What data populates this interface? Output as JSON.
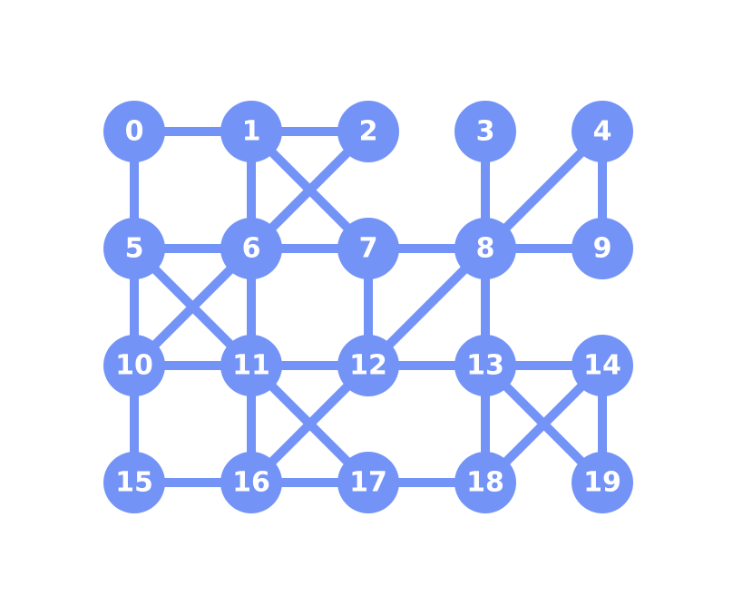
{
  "colors": {
    "node": "#7393F7",
    "edge": "#7393F7",
    "label": "#FFFFFF",
    "background": "#FFFFFF"
  },
  "grid": {
    "rows": 4,
    "cols": 5
  },
  "nodes": [
    {
      "id": 0,
      "label": "0",
      "row": 0,
      "col": 0
    },
    {
      "id": 1,
      "label": "1",
      "row": 0,
      "col": 1
    },
    {
      "id": 2,
      "label": "2",
      "row": 0,
      "col": 2
    },
    {
      "id": 3,
      "label": "3",
      "row": 0,
      "col": 3
    },
    {
      "id": 4,
      "label": "4",
      "row": 0,
      "col": 4
    },
    {
      "id": 5,
      "label": "5",
      "row": 1,
      "col": 0
    },
    {
      "id": 6,
      "label": "6",
      "row": 1,
      "col": 1
    },
    {
      "id": 7,
      "label": "7",
      "row": 1,
      "col": 2
    },
    {
      "id": 8,
      "label": "8",
      "row": 1,
      "col": 3
    },
    {
      "id": 9,
      "label": "9",
      "row": 1,
      "col": 4
    },
    {
      "id": 10,
      "label": "10",
      "row": 2,
      "col": 0
    },
    {
      "id": 11,
      "label": "11",
      "row": 2,
      "col": 1
    },
    {
      "id": 12,
      "label": "12",
      "row": 2,
      "col": 2
    },
    {
      "id": 13,
      "label": "13",
      "row": 2,
      "col": 3
    },
    {
      "id": 14,
      "label": "14",
      "row": 2,
      "col": 4
    },
    {
      "id": 15,
      "label": "15",
      "row": 3,
      "col": 0
    },
    {
      "id": 16,
      "label": "16",
      "row": 3,
      "col": 1
    },
    {
      "id": 17,
      "label": "17",
      "row": 3,
      "col": 2
    },
    {
      "id": 18,
      "label": "18",
      "row": 3,
      "col": 3
    },
    {
      "id": 19,
      "label": "19",
      "row": 3,
      "col": 4
    }
  ],
  "edges": [
    [
      0,
      1
    ],
    [
      1,
      2
    ],
    [
      0,
      5
    ],
    [
      1,
      6
    ],
    [
      1,
      7
    ],
    [
      2,
      6
    ],
    [
      3,
      8
    ],
    [
      4,
      8
    ],
    [
      4,
      9
    ],
    [
      5,
      6
    ],
    [
      6,
      7
    ],
    [
      7,
      8
    ],
    [
      8,
      9
    ],
    [
      5,
      10
    ],
    [
      5,
      11
    ],
    [
      6,
      10
    ],
    [
      6,
      11
    ],
    [
      7,
      12
    ],
    [
      8,
      12
    ],
    [
      8,
      13
    ],
    [
      10,
      11
    ],
    [
      11,
      12
    ],
    [
      12,
      13
    ],
    [
      13,
      14
    ],
    [
      10,
      15
    ],
    [
      11,
      16
    ],
    [
      11,
      17
    ],
    [
      12,
      16
    ],
    [
      13,
      18
    ],
    [
      13,
      19
    ],
    [
      14,
      18
    ],
    [
      14,
      19
    ],
    [
      15,
      16
    ],
    [
      16,
      17
    ],
    [
      17,
      18
    ]
  ]
}
